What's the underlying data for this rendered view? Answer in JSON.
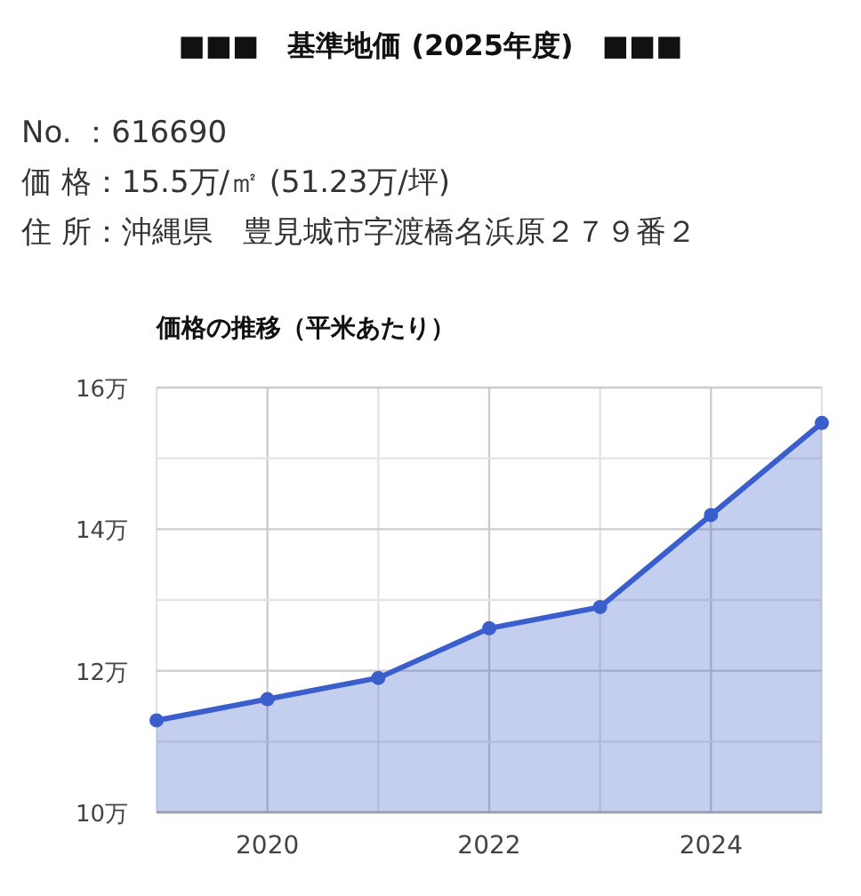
{
  "chart_data": {
    "type": "area",
    "title": "■■■　基準地価 (2025年度)　■■■",
    "subtitle": "価格の推移（平米あたり）",
    "annotations": [
      "No. ：616690",
      "価 格：15.5万/㎡ (51.23万/坪)",
      "住 所：沖縄県　豊見城市字渡橋名浜原２７９番２"
    ],
    "x": [
      2019,
      2020,
      2021,
      2022,
      2023,
      2024,
      2025
    ],
    "series": [
      {
        "color": "#3a5fcd",
        "values": [
          11.3,
          11.6,
          11.9,
          12.6,
          12.9,
          14.2,
          15.5
        ]
      }
    ],
    "xlim": [
      2019,
      2025
    ],
    "xticks": [
      {
        "value": 2019,
        "label": null
      },
      2020,
      {
        "value": 2021,
        "label": null
      },
      2022,
      {
        "value": 2023,
        "label": null
      },
      2024,
      {
        "value": 2025,
        "label": null
      }
    ],
    "ylim": [
      10,
      16
    ],
    "yticks": [
      {
        "value": 10,
        "label": "10万"
      },
      {
        "value": 11,
        "label": null
      },
      {
        "value": 12,
        "label": "12万"
      },
      {
        "value": 13,
        "label": null
      },
      {
        "value": 14,
        "label": "14万"
      },
      {
        "value": 15,
        "label": null
      },
      {
        "value": 16,
        "label": "16万"
      }
    ],
    "grid": true,
    "marker": "circle"
  }
}
